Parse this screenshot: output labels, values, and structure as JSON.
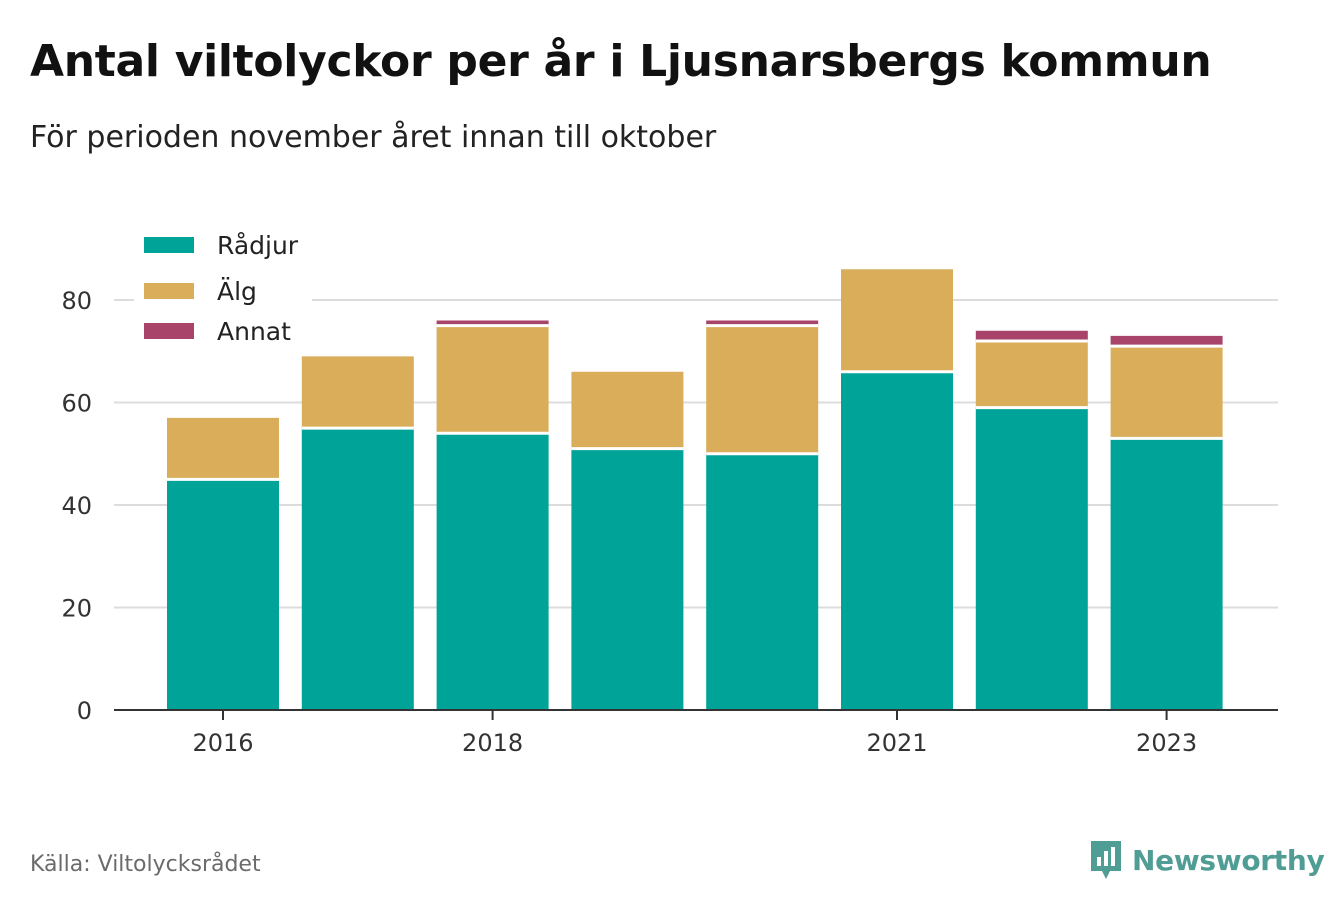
{
  "title": "Antal viltolyckor per år i Ljusnarsbergs kommun",
  "subtitle": "För perioden november året innan till oktober",
  "source": "Källa: Viltolycksrådet",
  "brand": {
    "name": "Newsworthy",
    "icon": "bar-chart-speech-bubble-icon",
    "color": "#4f9d94"
  },
  "chart_data": {
    "type": "bar",
    "stacked": true,
    "categories": [
      "2016",
      "2017",
      "2018",
      "2019",
      "2020",
      "2021",
      "2022",
      "2023"
    ],
    "x_tick_labels": [
      "2016",
      "",
      "2018",
      "",
      "",
      "2021",
      "",
      "2023"
    ],
    "series": [
      {
        "name": "Rådjur",
        "color": "#00a398",
        "values": [
          45,
          55,
          54,
          51,
          50,
          66,
          59,
          53
        ]
      },
      {
        "name": "Älg",
        "color": "#d9ad5a",
        "values": [
          12,
          14,
          21,
          15,
          25,
          20,
          13,
          18
        ]
      },
      {
        "name": "Annat",
        "color": "#a8436a",
        "values": [
          0,
          0,
          1,
          0,
          1,
          0,
          2,
          2
        ]
      }
    ],
    "ylim": [
      0,
      86
    ],
    "y_ticks": [
      0,
      20,
      40,
      60,
      80
    ],
    "grid": true,
    "legend_position": "top-left",
    "xlabel": "",
    "ylabel": ""
  }
}
